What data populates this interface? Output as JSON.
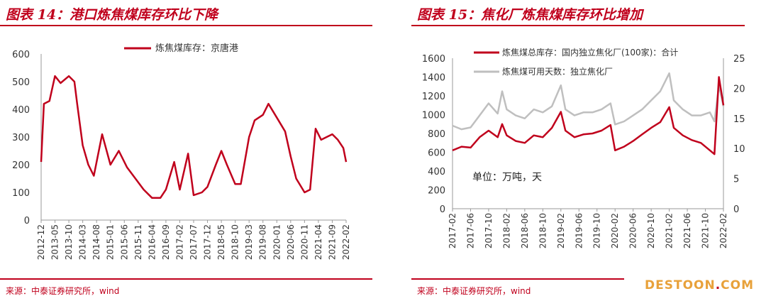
{
  "colors": {
    "accent": "#c0001c",
    "line_red": "#c0001c",
    "line_grey": "#bfbfbf",
    "watermark": "#e8a13a"
  },
  "chart_data": [
    {
      "type": "line",
      "title": "图表 14：港口炼焦煤库存环比下降",
      "source": "来源：中泰证券研究所，wind",
      "ylim": [
        0,
        600
      ],
      "yticks": [
        "0",
        "100",
        "200",
        "300",
        "400",
        "500",
        "600"
      ],
      "x_tick_labels": [
        "2012-12",
        "2013-05",
        "2013-10",
        "2014-03",
        "2014-08",
        "2015-01",
        "2015-06",
        "2015-11",
        "2016-04",
        "2016-09",
        "2017-02",
        "2017-07",
        "2017-12",
        "2018-05",
        "2018-10",
        "2019-03",
        "2019-08",
        "2020-01",
        "2020-06",
        "2020-11",
        "2021-04",
        "2021-09",
        "2022-02"
      ],
      "legend": "top-center",
      "grid": false,
      "series": [
        {
          "name": "炼焦煤库存：京唐港",
          "color": "#c0001c",
          "points": [
            [
              "2012-12",
              210
            ],
            [
              "2013-01",
              420
            ],
            [
              "2013-03",
              430
            ],
            [
              "2013-05",
              520
            ],
            [
              "2013-07",
              495
            ],
            [
              "2013-10",
              520
            ],
            [
              "2013-12",
              500
            ],
            [
              "2014-01",
              420
            ],
            [
              "2014-03",
              270
            ],
            [
              "2014-05",
              200
            ],
            [
              "2014-07",
              160
            ],
            [
              "2014-10",
              310
            ],
            [
              "2015-01",
              200
            ],
            [
              "2015-04",
              250
            ],
            [
              "2015-07",
              190
            ],
            [
              "2015-10",
              150
            ],
            [
              "2016-01",
              110
            ],
            [
              "2016-04",
              80
            ],
            [
              "2016-07",
              80
            ],
            [
              "2016-09",
              110
            ],
            [
              "2016-12",
              210
            ],
            [
              "2017-02",
              110
            ],
            [
              "2017-05",
              240
            ],
            [
              "2017-07",
              90
            ],
            [
              "2017-10",
              100
            ],
            [
              "2017-12",
              120
            ],
            [
              "2018-03",
              200
            ],
            [
              "2018-05",
              250
            ],
            [
              "2018-07",
              200
            ],
            [
              "2018-10",
              130
            ],
            [
              "2018-12",
              130
            ],
            [
              "2019-03",
              300
            ],
            [
              "2019-05",
              360
            ],
            [
              "2019-08",
              380
            ],
            [
              "2019-10",
              420
            ],
            [
              "2020-01",
              370
            ],
            [
              "2020-04",
              320
            ],
            [
              "2020-06",
              230
            ],
            [
              "2020-08",
              150
            ],
            [
              "2020-11",
              100
            ],
            [
              "2021-01",
              110
            ],
            [
              "2021-03",
              330
            ],
            [
              "2021-05",
              290
            ],
            [
              "2021-07",
              300
            ],
            [
              "2021-09",
              310
            ],
            [
              "2021-11",
              290
            ],
            [
              "2022-01",
              260
            ],
            [
              "2022-02",
              210
            ]
          ]
        }
      ]
    },
    {
      "type": "line",
      "title": "图表 15：焦化厂炼焦煤库存环比增加",
      "source": "来源：中泰证券研究所，wind",
      "ylim_left": [
        0,
        1600
      ],
      "ylim_right": [
        0,
        25
      ],
      "yticks_left": [
        "0",
        "200",
        "400",
        "600",
        "800",
        "1000",
        "1200",
        "1400",
        "1600"
      ],
      "yticks_right": [
        "0",
        "5",
        "10",
        "15",
        "20",
        "25"
      ],
      "x_tick_labels": [
        "2017-02",
        "2017-06",
        "2017-10",
        "2018-02",
        "2018-06",
        "2018-10",
        "2019-02",
        "2019-06",
        "2019-10",
        "2020-02",
        "2020-06",
        "2020-10",
        "2021-02",
        "2021-06",
        "2021-10",
        "2022-02"
      ],
      "annotation": "单位：万吨，天",
      "legend": "top-left",
      "grid": false,
      "series": [
        {
          "name": "炼焦煤总库存：国内独立焦化厂(100家)：合计",
          "axis": "left",
          "color": "#c0001c",
          "points": [
            [
              "2017-02",
              620
            ],
            [
              "2017-04",
              660
            ],
            [
              "2017-06",
              650
            ],
            [
              "2017-08",
              760
            ],
            [
              "2017-10",
              830
            ],
            [
              "2017-12",
              760
            ],
            [
              "2018-01",
              900
            ],
            [
              "2018-02",
              780
            ],
            [
              "2018-04",
              720
            ],
            [
              "2018-06",
              700
            ],
            [
              "2018-08",
              780
            ],
            [
              "2018-10",
              760
            ],
            [
              "2018-12",
              860
            ],
            [
              "2019-02",
              1030
            ],
            [
              "2019-03",
              830
            ],
            [
              "2019-05",
              760
            ],
            [
              "2019-07",
              790
            ],
            [
              "2019-09",
              800
            ],
            [
              "2019-11",
              830
            ],
            [
              "2020-01",
              890
            ],
            [
              "2020-02",
              620
            ],
            [
              "2020-04",
              660
            ],
            [
              "2020-06",
              720
            ],
            [
              "2020-08",
              790
            ],
            [
              "2020-10",
              860
            ],
            [
              "2020-12",
              920
            ],
            [
              "2021-02",
              1080
            ],
            [
              "2021-03",
              860
            ],
            [
              "2021-05",
              780
            ],
            [
              "2021-07",
              730
            ],
            [
              "2021-09",
              700
            ],
            [
              "2021-11",
              620
            ],
            [
              "2021-12",
              580
            ],
            [
              "2022-01",
              1400
            ],
            [
              "2022-02",
              1100
            ]
          ]
        },
        {
          "name": "炼焦煤可用天数：独立焦化厂",
          "axis": "right",
          "color": "#bfbfbf",
          "points": [
            [
              "2017-02",
              13.8
            ],
            [
              "2017-04",
              13.2
            ],
            [
              "2017-06",
              13.5
            ],
            [
              "2017-08",
              15.5
            ],
            [
              "2017-10",
              17.5
            ],
            [
              "2017-12",
              15.8
            ],
            [
              "2018-01",
              19.5
            ],
            [
              "2018-02",
              16.5
            ],
            [
              "2018-04",
              15.5
            ],
            [
              "2018-06",
              15.0
            ],
            [
              "2018-08",
              16.5
            ],
            [
              "2018-10",
              16.0
            ],
            [
              "2018-12",
              17.0
            ],
            [
              "2019-02",
              20.5
            ],
            [
              "2019-03",
              16.5
            ],
            [
              "2019-05",
              15.5
            ],
            [
              "2019-07",
              16.0
            ],
            [
              "2019-09",
              16.0
            ],
            [
              "2019-11",
              16.5
            ],
            [
              "2020-01",
              17.5
            ],
            [
              "2020-02",
              14.0
            ],
            [
              "2020-04",
              14.5
            ],
            [
              "2020-06",
              15.5
            ],
            [
              "2020-08",
              16.5
            ],
            [
              "2020-10",
              18.0
            ],
            [
              "2020-12",
              19.5
            ],
            [
              "2021-02",
              22.5
            ],
            [
              "2021-03",
              18.0
            ],
            [
              "2021-05",
              16.5
            ],
            [
              "2021-07",
              15.5
            ],
            [
              "2021-09",
              15.5
            ],
            [
              "2021-11",
              16.0
            ],
            [
              "2021-12",
              14.5
            ],
            [
              "2022-01",
              20.5
            ],
            [
              "2022-02",
              17.0
            ]
          ]
        }
      ]
    }
  ],
  "watermark": {
    "text": "DESTOON",
    "dot": ".",
    "suffix": "COM"
  }
}
